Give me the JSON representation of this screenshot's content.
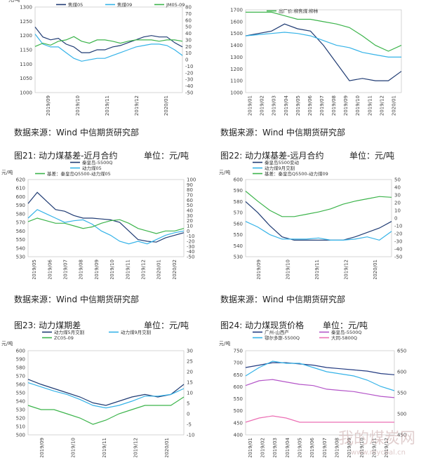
{
  "sources": "数据来源：Wind 中信期货研究部",
  "titles": {
    "c21": {
      "label": "图21: 动力煤基差-近月合约",
      "unit": "单位：元/吨"
    },
    "c22": {
      "label": "图22: 动力煤基差-远月合约",
      "unit": "单位：元/吨"
    },
    "c23": {
      "label": "图23: 动力煤期差",
      "unit": "单位：元/吨"
    },
    "c24": {
      "label": "图24: 动力煤现货价格",
      "unit": "单位：元/吨"
    }
  },
  "watermark": {
    "text": "我的煤炭网",
    "url": "www.mycoal.cn"
  },
  "colors": {
    "navy": "#1f3b73",
    "blue": "#35b3e8",
    "green": "#3cb44b",
    "purple": "#b455c8",
    "pink": "#ec6fb4",
    "darkblue": "#223a80"
  },
  "chart_data": [
    {
      "id": "c1",
      "type": "line",
      "ylabel": "元/吨",
      "left_ylim": [
        1000,
        1300
      ],
      "left_ticks": [
        1000,
        1050,
        1100,
        1150,
        1200,
        1250,
        1300
      ],
      "right_ylim": [
        -50,
        80
      ],
      "right_ticks": [
        -50,
        -40,
        -30,
        -20,
        -10,
        0,
        10,
        20,
        30,
        40,
        50,
        60,
        70,
        80
      ],
      "x_labels": [
        "2019/09",
        "2019/10",
        "2019/11",
        "2019/12",
        "2020/01"
      ],
      "series": [
        {
          "name": "焦煤05",
          "axis": "left",
          "color": "navy",
          "values": [
            1230,
            1195,
            1185,
            1190,
            1170,
            1160,
            1140,
            1140,
            1150,
            1150,
            1160,
            1165,
            1175,
            1185,
            1195,
            1200,
            1195,
            1195,
            1175,
            1160
          ]
        },
        {
          "name": "焦煤09",
          "axis": "left",
          "color": "blue",
          "values": [
            1205,
            1170,
            1160,
            1160,
            1140,
            1120,
            1110,
            1115,
            1120,
            1120,
            1130,
            1140,
            1150,
            1160,
            1165,
            1170,
            1170,
            1165,
            1150,
            1130
          ]
        },
        {
          "name": "JM05-09",
          "axis": "right",
          "color": "green",
          "values": [
            20,
            25,
            22,
            28,
            30,
            35,
            28,
            25,
            30,
            30,
            28,
            25,
            28,
            30,
            30,
            30,
            28,
            30,
            30,
            28
          ]
        }
      ]
    },
    {
      "id": "c2",
      "type": "line",
      "ylabel": "",
      "left_ylim": [
        1000,
        1700
      ],
      "left_ticks": [
        1000,
        1100,
        1200,
        1300,
        1400,
        1500,
        1600,
        1700
      ],
      "x_labels": [
        "2019/01",
        "2019/02",
        "2019/03",
        "2019/04",
        "2019/05",
        "2019/06",
        "2019/07",
        "2019/08",
        "2019/09",
        "2019/10",
        "2019/11",
        "2019/12",
        "2020/01"
      ],
      "legend_label": "出厂价:柳焦煤:柳林",
      "series": [
        {
          "name": "出厂价:柳焦煤:柳林",
          "axis": "left",
          "color": "green",
          "values": [
            1680,
            1680,
            1680,
            1650,
            1620,
            1620,
            1600,
            1580,
            1550,
            1480,
            1400,
            1350,
            1400
          ]
        },
        {
          "name": "",
          "axis": "left",
          "color": "navy",
          "values": [
            1480,
            1500,
            1520,
            1580,
            1540,
            1520,
            1400,
            1250,
            1100,
            1120,
            1100,
            1100,
            1180
          ]
        },
        {
          "name": "",
          "axis": "left",
          "color": "blue",
          "values": [
            1480,
            1490,
            1500,
            1510,
            1500,
            1480,
            1440,
            1400,
            1380,
            1340,
            1320,
            1300,
            1300
          ]
        }
      ]
    },
    {
      "id": "c21",
      "type": "line",
      "ylabel": "元/吨",
      "left_ylim": [
        530,
        620
      ],
      "left_ticks": [
        530,
        540,
        550,
        560,
        570,
        580,
        590,
        600,
        610,
        620
      ],
      "right_ylim": [
        -50,
        100
      ],
      "right_ticks": [
        -50,
        -40,
        -30,
        -20,
        -10,
        0,
        10,
        20,
        30,
        40,
        50,
        60,
        70,
        80,
        90,
        100
      ],
      "x_labels": [
        "2019/05",
        "2019/06",
        "2019/07",
        "2019/08",
        "2019/09",
        "2019/10",
        "2019/11",
        "2019/12",
        "2020/01",
        "2020/02"
      ],
      "series": [
        {
          "name": "秦皇岛-5500Q",
          "axis": "left",
          "color": "navy",
          "values": [
            592,
            605,
            595,
            585,
            583,
            578,
            575,
            575,
            574,
            573,
            570,
            560,
            550,
            548,
            547,
            552,
            555,
            558
          ]
        },
        {
          "name": "动力煤05",
          "axis": "left",
          "color": "blue",
          "values": [
            575,
            585,
            580,
            575,
            570,
            572,
            573,
            568,
            560,
            555,
            548,
            545,
            548,
            545,
            550,
            555,
            558,
            560
          ]
        },
        {
          "name": "基差：秦皇岛Q5500-动力煤05",
          "axis": "right",
          "color": "green",
          "values": [
            18,
            25,
            20,
            15,
            15,
            10,
            5,
            8,
            15,
            20,
            22,
            15,
            5,
            0,
            -5,
            0,
            0,
            5
          ]
        }
      ]
    },
    {
      "id": "c22",
      "type": "line",
      "ylabel": "元/吨",
      "left_ylim": [
        530,
        600
      ],
      "left_ticks": [
        530,
        540,
        550,
        560,
        570,
        580,
        590,
        600
      ],
      "right_ylim": [
        -50,
        50
      ],
      "right_ticks": [
        -50,
        -40,
        -30,
        -20,
        -10,
        0,
        10,
        20,
        30,
        40,
        50
      ],
      "x_labels": [
        "2019/09",
        "2019/10",
        "2019/11",
        "2019/12",
        "2020/01"
      ],
      "series": [
        {
          "name": "秦皇岛5500变动",
          "axis": "left",
          "color": "navy",
          "values": [
            580,
            570,
            558,
            548,
            545,
            545,
            545,
            545,
            545,
            548,
            552,
            556,
            562
          ]
        },
        {
          "name": "动力煤9月交割",
          "axis": "left",
          "color": "blue",
          "values": [
            562,
            557,
            550,
            546,
            546,
            546,
            547,
            545,
            545,
            546,
            548,
            545,
            553
          ]
        },
        {
          "name": "基差：秦皇岛Q5500-动力煤09",
          "axis": "right",
          "color": "green",
          "values": [
            35,
            22,
            10,
            2,
            2,
            5,
            8,
            12,
            18,
            22,
            25,
            28,
            27
          ]
        }
      ]
    },
    {
      "id": "c23",
      "type": "line",
      "ylabel": "元/吨",
      "left_ylim": [
        500,
        600
      ],
      "left_ticks": [
        500,
        510,
        520,
        530,
        540,
        550,
        560,
        570,
        580,
        590,
        600
      ],
      "right_ylim": [
        -10,
        30
      ],
      "right_ticks": [
        -10,
        -5,
        0,
        5,
        10,
        15,
        20,
        25,
        30
      ],
      "x_labels": [
        "2019/09",
        "2019/10",
        "2019/11",
        "2019/12",
        "2020/01"
      ],
      "series": [
        {
          "name": "动力煤5月交割",
          "axis": "left",
          "color": "navy",
          "values": [
            566,
            560,
            555,
            550,
            545,
            538,
            535,
            540,
            545,
            548,
            545,
            548,
            560
          ]
        },
        {
          "name": "动力煤9月交割",
          "axis": "left",
          "color": "blue",
          "values": [
            562,
            557,
            552,
            548,
            542,
            535,
            532,
            535,
            540,
            546,
            546,
            548,
            555
          ]
        },
        {
          "name": "ZC05-09",
          "axis": "right",
          "color": "green",
          "values": [
            4,
            2,
            2,
            0,
            -2,
            -5,
            -3,
            0,
            2,
            4,
            4,
            4,
            8
          ]
        }
      ]
    },
    {
      "id": "c24",
      "type": "line",
      "ylabel": "元/吨",
      "left_ylim": [
        400,
        750
      ],
      "left_ticks": [
        400,
        450,
        500,
        550,
        600,
        650,
        700,
        750
      ],
      "right_ylim": [
        450,
        650
      ],
      "right_ticks": [
        450,
        500,
        550,
        600,
        650
      ],
      "x_labels": [
        "2019/01",
        "2019/02",
        "2019/03",
        "2019/04",
        "2019/05",
        "2019/06",
        "2019/07",
        "2019/08",
        "2019/09",
        "2019/10",
        "2019/11",
        "2019/12"
      ],
      "series": [
        {
          "name": "广州-山西产",
          "axis": "left",
          "color": "darkblue",
          "values": [
            680,
            690,
            700,
            700,
            695,
            690,
            680,
            675,
            670,
            665,
            655,
            650
          ]
        },
        {
          "name": "秦皇岛-5500Q",
          "axis": "left",
          "color": "purple",
          "values": [
            605,
            625,
            630,
            620,
            610,
            605,
            590,
            585,
            580,
            570,
            560,
            555
          ]
        },
        {
          "name": "鄂尔多斯-5500Q",
          "axis": "right",
          "color": "blue",
          "values": [
            590,
            610,
            625,
            620,
            620,
            610,
            600,
            595,
            590,
            580,
            565,
            555
          ]
        },
        {
          "name": "大同-5800Q",
          "axis": "right",
          "color": "pink",
          "values": [
            480,
            490,
            495,
            490,
            480,
            480,
            480,
            480,
            480,
            480,
            480,
            480
          ]
        }
      ]
    }
  ]
}
